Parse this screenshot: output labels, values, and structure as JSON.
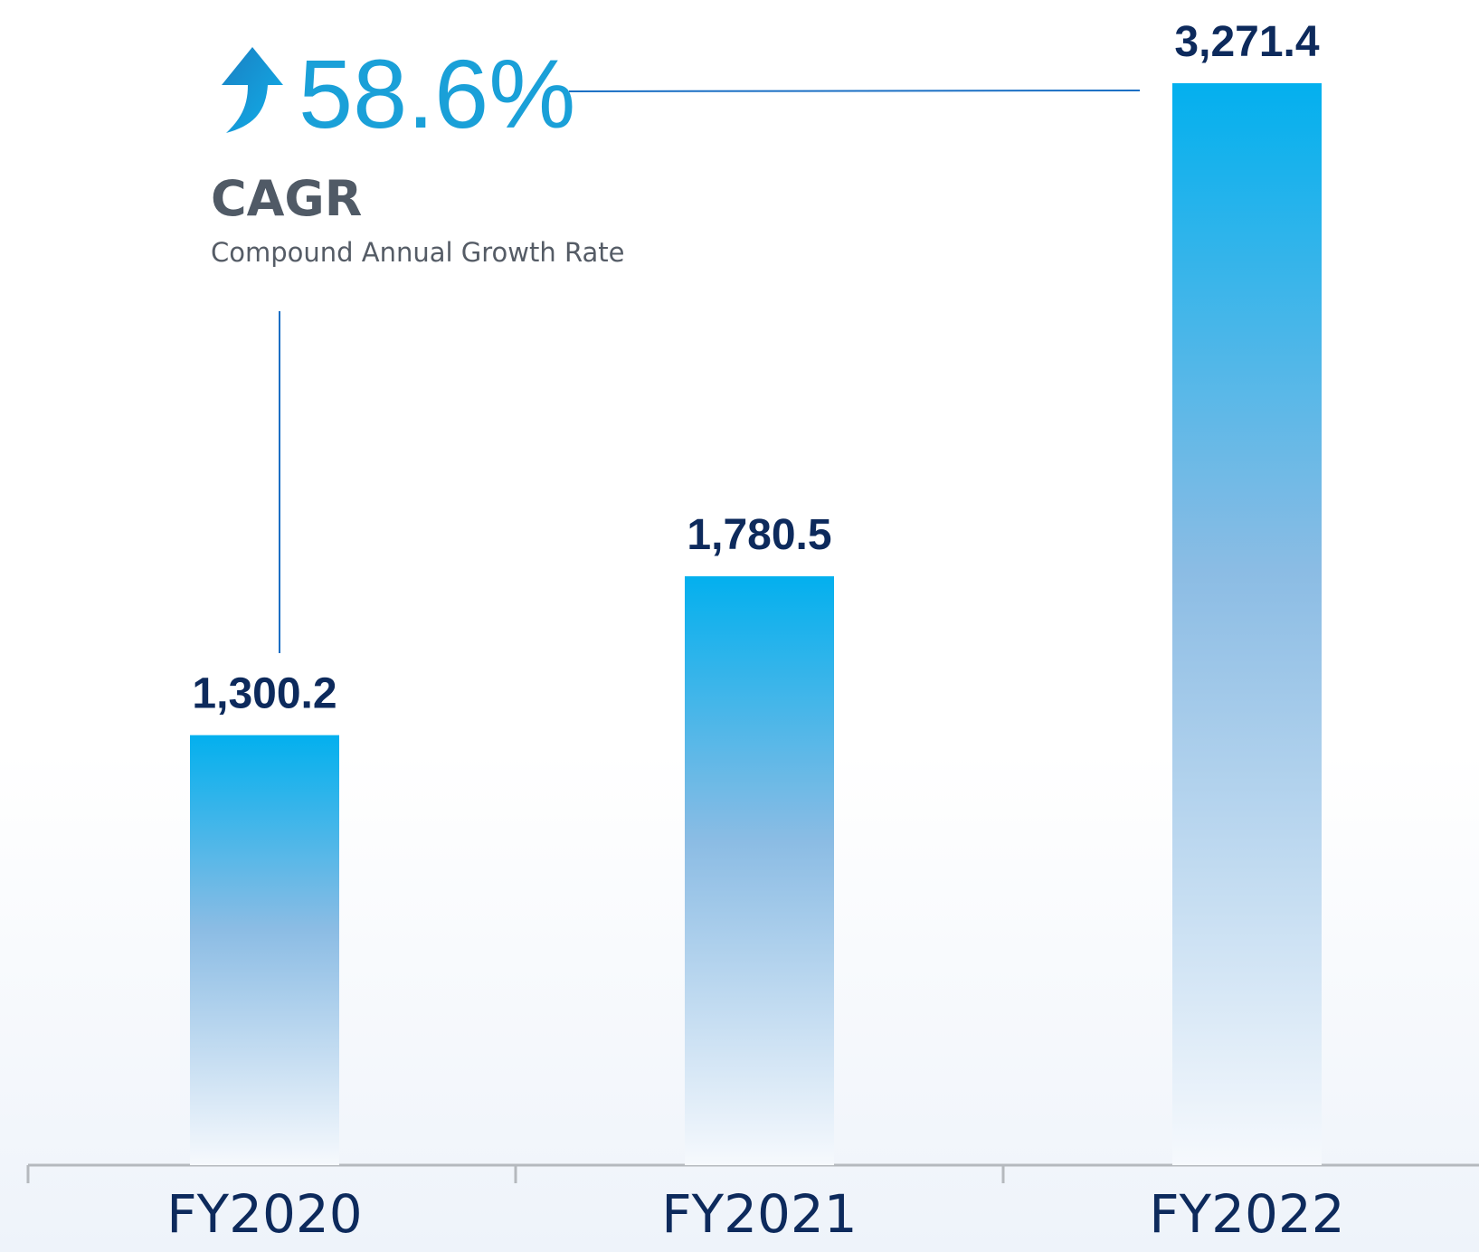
{
  "chart_data": {
    "type": "bar",
    "categories": [
      "FY2020",
      "FY2021",
      "FY2022"
    ],
    "values": [
      1300.2,
      1780.5,
      3271.4
    ],
    "value_labels": [
      "1,300.2",
      "1,780.5",
      "3,271.4"
    ],
    "color": "#03b0ee",
    "annotation": {
      "value": "58.6%",
      "label": "CAGR",
      "description": "Compound Annual Growth Rate"
    }
  }
}
